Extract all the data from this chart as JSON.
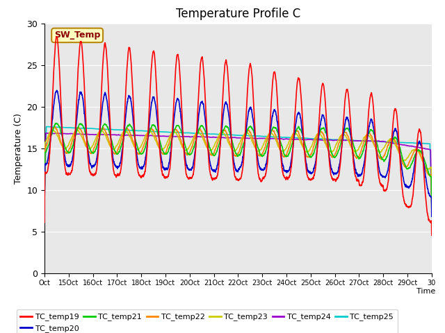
{
  "title": "Temperature Profile C",
  "xlabel": "Time",
  "ylabel": "Temperature (C)",
  "ylim": [
    0,
    30
  ],
  "series_colors": {
    "TC_temp19": "#ff0000",
    "TC_temp20": "#0000cc",
    "TC_temp21": "#00cc00",
    "TC_temp22": "#ff8800",
    "TC_temp23": "#cccc00",
    "TC_temp24": "#9900cc",
    "TC_temp25": "#00cccc"
  },
  "annotation_text": "SW_Temp",
  "annotation_bg": "#ffffc0",
  "annotation_border": "#b8860b",
  "annotation_text_color": "#8b0000",
  "xtick_labels": [
    "Oct",
    "15Oct",
    "16Oct",
    "17Oct",
    "18Oct",
    "19Oct",
    "20Oct",
    "21Oct",
    "22Oct",
    "23Oct",
    "24Oct",
    "25Oct",
    "26Oct",
    "27Oct",
    "28Oct",
    "29Oct",
    "30"
  ],
  "plot_bg": "#e8e8e8",
  "grid_color": "#ffffff",
  "figsize": [
    6.4,
    4.8
  ],
  "dpi": 100
}
